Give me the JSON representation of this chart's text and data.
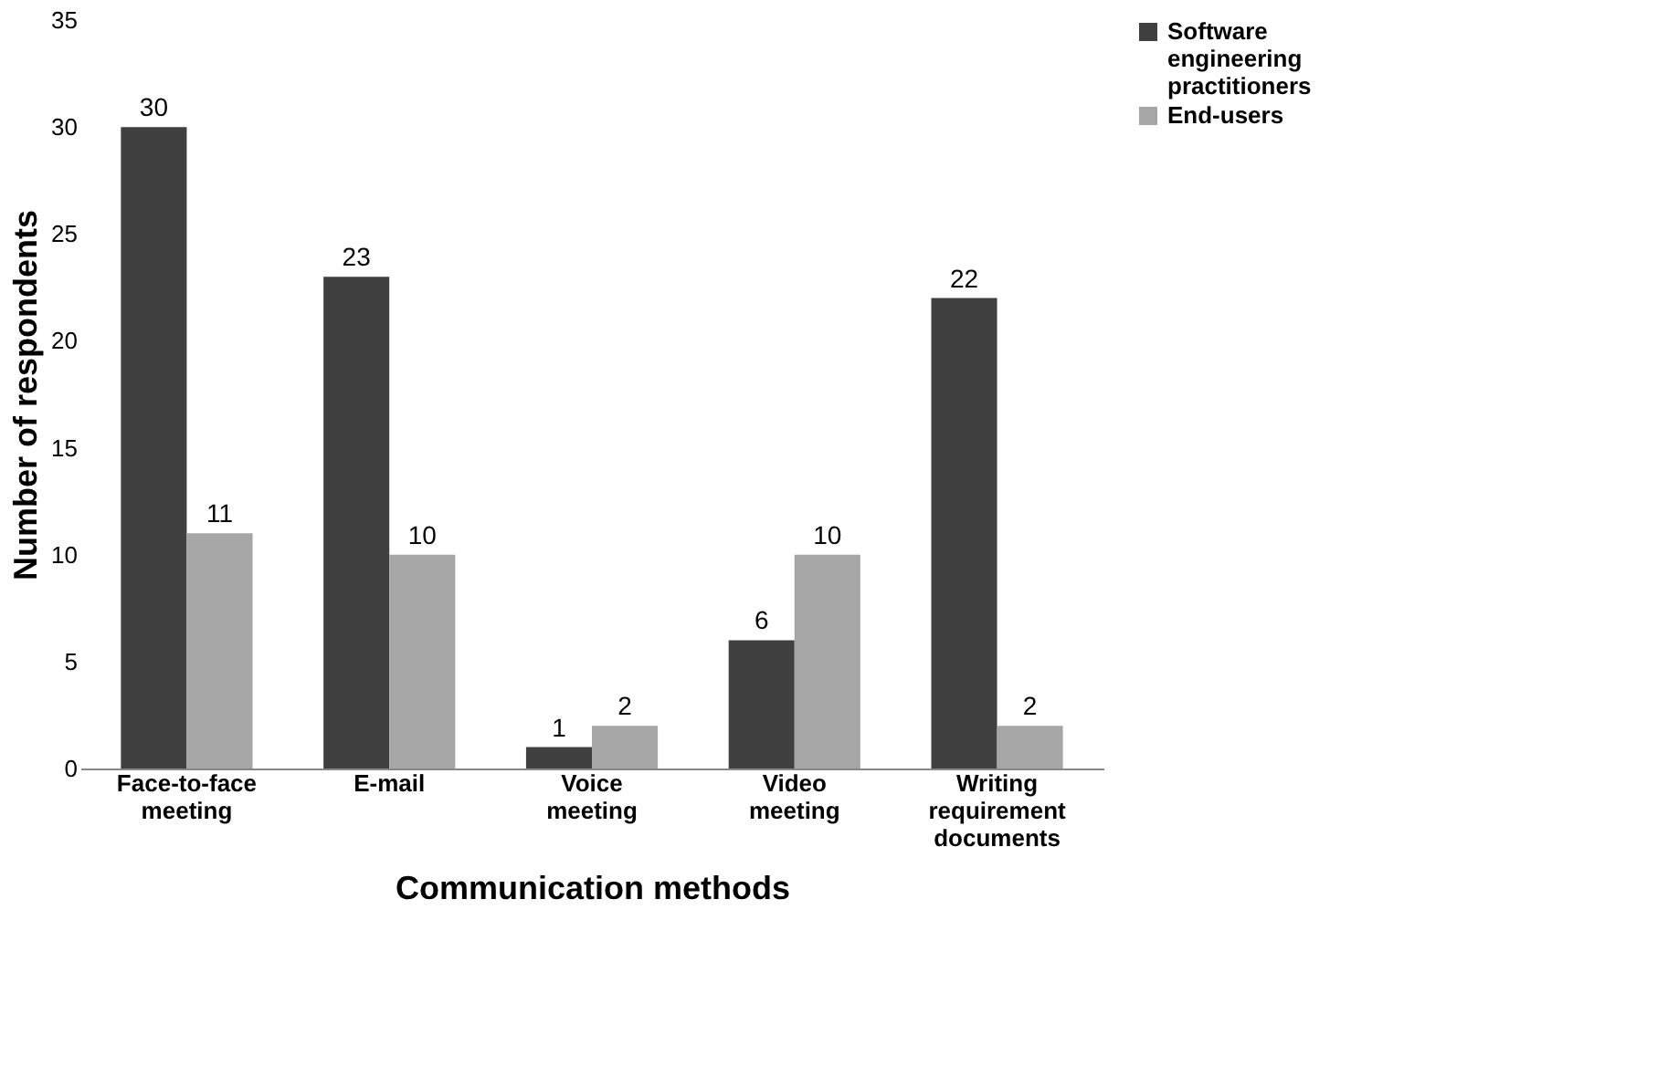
{
  "chart_data": {
    "type": "bar",
    "xlabel": "Communication methods",
    "ylabel": "Number of respondents",
    "categories": [
      "Face-to-face\nmeeting",
      "E-mail",
      "Voice\nmeeting",
      "Video\nmeeting",
      "Writing\nrequirement\ndocuments"
    ],
    "series": [
      {
        "name": "Software\nengineering\npractitioners",
        "color": "#404040",
        "values": [
          30,
          23,
          1,
          6,
          22
        ]
      },
      {
        "name": "End-users",
        "color": "#a6a6a6",
        "values": [
          11,
          10,
          2,
          10,
          2
        ]
      }
    ],
    "ylim": [
      0,
      35
    ],
    "yticks": [
      0,
      5,
      10,
      15,
      20,
      25,
      30,
      35
    ],
    "grid": false,
    "legend": "right",
    "data_labels": true
  }
}
